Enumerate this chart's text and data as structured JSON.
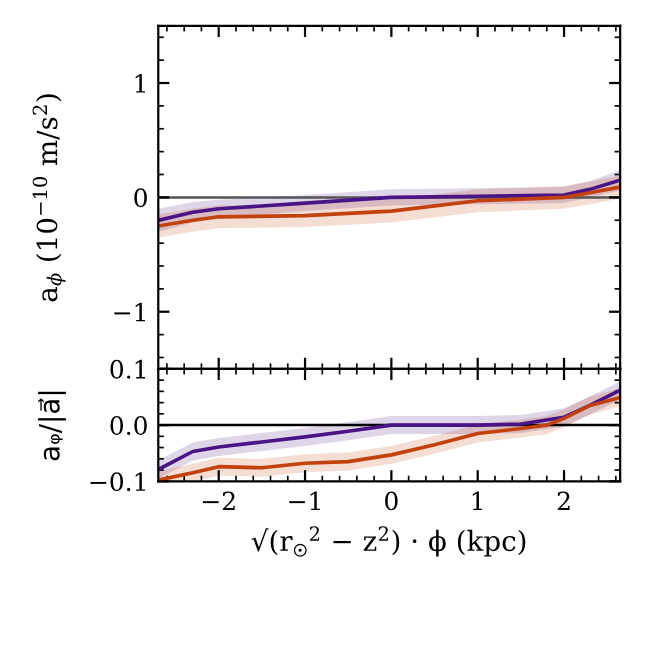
{
  "chart_data": [
    {
      "type": "line",
      "ylabel": "a$_{ϕ}$ (10$^{−10}$ m/s$^{2}$)",
      "tick_labels": "y",
      "xlim": [
        -2.7,
        2.65
      ],
      "xticks": [
        -2,
        -1,
        0,
        1,
        2
      ],
      "ylim": [
        -1.5,
        1.5
      ],
      "yticks": [
        -1,
        0,
        1
      ],
      "ref_lines": [
        {
          "axis": "y",
          "value": 0,
          "color": "#555555"
        }
      ],
      "series": [
        {
          "color": "#4a1486",
          "x": [
            -2.7,
            -2.3,
            -2,
            -1,
            0,
            1,
            2,
            2.3,
            2.65
          ],
          "values": [
            -0.2,
            -0.13,
            -0.1,
            -0.05,
            0.0,
            0.01,
            0.02,
            0.07,
            0.15
          ],
          "lower": [
            -0.3,
            -0.22,
            -0.18,
            -0.12,
            -0.07,
            -0.06,
            -0.05,
            0.0,
            0.06
          ],
          "upper": [
            -0.1,
            -0.04,
            -0.02,
            0.02,
            0.07,
            0.08,
            0.09,
            0.14,
            0.24
          ]
        },
        {
          "color": "#c2410c",
          "x": [
            -2.7,
            -2.3,
            -2,
            -1,
            0,
            1,
            2,
            2.3,
            2.65
          ],
          "values": [
            -0.25,
            -0.2,
            -0.17,
            -0.16,
            -0.12,
            -0.03,
            0.0,
            0.04,
            0.09
          ],
          "lower": [
            -0.35,
            -0.3,
            -0.27,
            -0.26,
            -0.22,
            -0.13,
            -0.1,
            -0.06,
            -0.01
          ],
          "upper": [
            -0.15,
            -0.1,
            -0.07,
            -0.06,
            -0.02,
            0.07,
            0.1,
            0.14,
            0.19
          ]
        }
      ]
    },
    {
      "type": "line",
      "ylabel": "aᵩ/|a⃗|",
      "xlabel": "√(r$_{☉}$$^{2}$ − z$^{2}$) · ϕ (kpc)",
      "xlim": [
        -2.7,
        2.65
      ],
      "xticks": [
        -2,
        -1,
        0,
        1,
        2
      ],
      "ylim": [
        -0.1,
        0.1
      ],
      "yticks": [
        {
          "value": -0.1,
          "label": "−0.1"
        },
        {
          "value": 0,
          "label": "0.0"
        },
        {
          "value": 0.1,
          "label": "0.1"
        }
      ],
      "ref_lines": [
        {
          "axis": "y",
          "value": 0,
          "color": "#000000"
        }
      ],
      "series": [
        {
          "color": "#4a1486",
          "x": [
            -2.7,
            -2.3,
            -2,
            -1.5,
            -1,
            -0.5,
            0,
            0.5,
            1,
            1.5,
            2,
            2.3,
            2.65
          ],
          "values": [
            -0.079,
            -0.047,
            -0.039,
            -0.03,
            -0.021,
            -0.011,
            0.0,
            0.0,
            0.0,
            0.002,
            0.014,
            0.035,
            0.062
          ],
          "lower": [
            -0.095,
            -0.063,
            -0.055,
            -0.046,
            -0.037,
            -0.027,
            -0.016,
            -0.016,
            -0.016,
            -0.014,
            -0.002,
            0.019,
            0.046
          ],
          "upper": [
            -0.063,
            -0.031,
            -0.023,
            -0.014,
            -0.005,
            0.005,
            0.016,
            0.016,
            0.016,
            0.018,
            0.03,
            0.051,
            0.078
          ]
        },
        {
          "color": "#c2410c",
          "x": [
            -2.7,
            -2.3,
            -2,
            -1.5,
            -1,
            -0.5,
            0,
            0.5,
            1,
            1.5,
            1.8,
            2,
            2.3,
            2.65
          ],
          "values": [
            -0.098,
            -0.085,
            -0.074,
            -0.076,
            -0.068,
            -0.065,
            -0.053,
            -0.035,
            -0.015,
            -0.006,
            0.0,
            0.012,
            0.035,
            0.049
          ],
          "lower": [
            -0.1,
            -0.1,
            -0.09,
            -0.092,
            -0.084,
            -0.081,
            -0.069,
            -0.051,
            -0.031,
            -0.022,
            -0.016,
            -0.004,
            0.019,
            0.033
          ],
          "upper": [
            -0.082,
            -0.069,
            -0.058,
            -0.06,
            -0.052,
            -0.049,
            -0.037,
            -0.019,
            0.001,
            0.01,
            0.016,
            0.028,
            0.051,
            0.065
          ]
        }
      ]
    }
  ]
}
